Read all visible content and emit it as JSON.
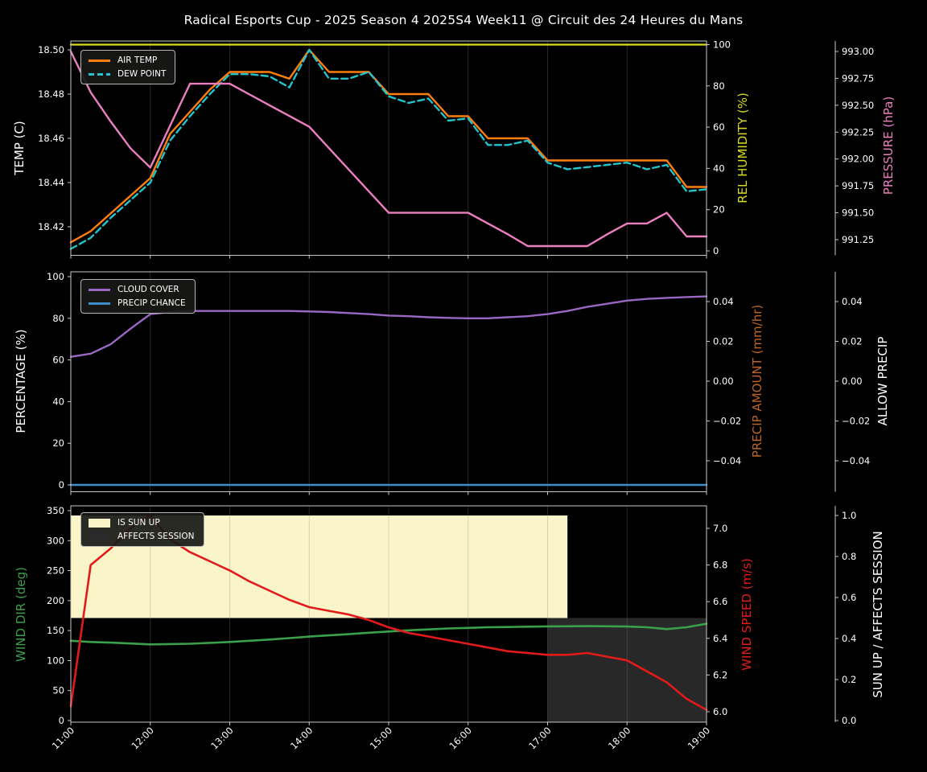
{
  "title": "Radical Esports Cup - 2025 Season 4 2025S4 Week11 @ Circuit des 24 Heures du Mans",
  "style": {
    "background": "#000000",
    "text_color": "#ffffff",
    "grid_color": "#808080",
    "spine_color": "#c8c8c8"
  },
  "x_axis": {
    "tick_labels": [
      "11:00",
      "12:00",
      "13:00",
      "14:00",
      "15:00",
      "16:00",
      "17:00",
      "18:00",
      "19:00"
    ]
  },
  "chart_data": [
    {
      "type": "line",
      "x": [
        "11:00",
        "11:15",
        "11:30",
        "11:45",
        "12:00",
        "12:15",
        "12:30",
        "12:45",
        "13:00",
        "13:15",
        "13:30",
        "13:45",
        "14:00",
        "14:15",
        "14:30",
        "14:45",
        "15:00",
        "15:15",
        "15:30",
        "15:45",
        "16:00",
        "16:15",
        "16:30",
        "16:45",
        "17:00",
        "17:15",
        "17:30",
        "17:45",
        "18:00",
        "18:15",
        "18:30",
        "18:45",
        "19:00"
      ],
      "axes": {
        "left": {
          "label": "TEMP (C)",
          "color": "#ffffff",
          "ticks": [
            "18.42",
            "18.44",
            "18.46",
            "18.48",
            "18.50"
          ]
        },
        "right1": {
          "label": "REL HUMIDITY (%)",
          "color": "#d9dc1f",
          "ticks": [
            "0",
            "20",
            "40",
            "60",
            "80",
            "100"
          ]
        },
        "right2": {
          "label": "PRESSURE (hPa)",
          "color": "#ec7fc1",
          "ticks": [
            "991.25",
            "991.50",
            "991.75",
            "992.00",
            "992.25",
            "992.50",
            "992.75",
            "993.00"
          ]
        }
      },
      "series": [
        {
          "name": "AIR TEMP",
          "axis": "temp",
          "color": "#ff7f0e",
          "width": 2.4,
          "values": [
            18.413,
            18.418,
            18.426,
            18.434,
            18.442,
            18.462,
            18.472,
            18.482,
            18.49,
            18.49,
            18.49,
            18.487,
            18.5,
            18.49,
            18.49,
            18.49,
            18.48,
            18.48,
            18.48,
            18.47,
            18.47,
            18.46,
            18.46,
            18.46,
            18.45,
            18.45,
            18.45,
            18.45,
            18.45,
            18.45,
            18.45,
            18.438,
            18.438
          ]
        },
        {
          "name": "DEW POINT",
          "axis": "temp",
          "color": "#24c4cc",
          "width": 2.4,
          "dash": "8 4.5",
          "values": [
            18.41,
            18.415,
            18.424,
            18.432,
            18.44,
            18.459,
            18.47,
            18.48,
            18.489,
            18.489,
            18.488,
            18.483,
            18.5,
            18.487,
            18.487,
            18.49,
            18.479,
            18.476,
            18.478,
            18.468,
            18.469,
            18.457,
            18.457,
            18.459,
            18.449,
            18.446,
            18.447,
            18.448,
            18.449,
            18.446,
            18.448,
            18.436,
            18.437
          ]
        },
        {
          "name": "REL HUMIDITY",
          "axis": "hum",
          "color": "#d9dc1f",
          "width": 2.2,
          "values": [
            100,
            100,
            100,
            100,
            100,
            100,
            100,
            100,
            100,
            100,
            100,
            100,
            100,
            100,
            100,
            100,
            100,
            100,
            100,
            100,
            100,
            100,
            100,
            100,
            100,
            100,
            100,
            100,
            100,
            100,
            100,
            100,
            100
          ]
        },
        {
          "name": "PRESSURE",
          "axis": "press",
          "color": "#ec7fc1",
          "width": 2.4,
          "values": [
            993.0,
            992.62,
            992.35,
            992.1,
            991.92,
            992.31,
            992.7,
            992.7,
            992.7,
            992.6,
            992.5,
            992.4,
            992.3,
            992.1,
            991.9,
            991.7,
            991.5,
            991.5,
            991.5,
            991.5,
            991.5,
            991.4,
            991.3,
            991.19,
            991.19,
            991.19,
            991.19,
            991.3,
            991.4,
            991.4,
            991.5,
            991.28,
            991.28
          ]
        }
      ],
      "legend": [
        {
          "label": "AIR TEMP",
          "swatch": "line",
          "color": "#ff7f0e"
        },
        {
          "label": "DEW POINT",
          "swatch": "dashed-line",
          "color": "#24c4cc"
        }
      ]
    },
    {
      "type": "line",
      "x": [
        "11:00",
        "11:15",
        "11:30",
        "11:45",
        "12:00",
        "12:15",
        "12:30",
        "12:45",
        "13:00",
        "13:15",
        "13:30",
        "13:45",
        "14:00",
        "14:15",
        "14:30",
        "14:45",
        "15:00",
        "15:15",
        "15:30",
        "15:45",
        "16:00",
        "16:15",
        "16:30",
        "16:45",
        "17:00",
        "17:15",
        "17:30",
        "17:45",
        "18:00",
        "18:15",
        "18:30",
        "18:45",
        "19:00"
      ],
      "axes": {
        "left": {
          "label": "PERCENTAGE (%)",
          "color": "#ffffff",
          "ticks": [
            "0",
            "20",
            "40",
            "60",
            "80",
            "100"
          ]
        },
        "right1": {
          "label": "PRECIP AMOUNT (mm/hr)",
          "color": "#bd6527",
          "ticks": [
            "−0.04",
            "−0.02",
            "0.00",
            "0.02",
            "0.04"
          ]
        },
        "right2": {
          "label": "ALLOW PRECIP",
          "color": "#ffffff",
          "ticks": [
            "−0.04",
            "−0.02",
            "0.00",
            "0.02",
            "0.04"
          ]
        }
      },
      "series": [
        {
          "name": "CLOUD COVER",
          "axis": "pct",
          "color": "#9a68c4",
          "width": 2.4,
          "values": [
            61.5,
            63,
            67.5,
            75,
            82,
            83,
            83.5,
            83.5,
            83.5,
            83.5,
            83.5,
            83.5,
            83.3,
            83,
            82.5,
            82,
            81.3,
            81,
            80.5,
            80.2,
            80,
            80,
            80.5,
            81,
            82,
            83.5,
            85.5,
            87,
            88.5,
            89.3,
            89.8,
            90.2,
            90.5
          ]
        },
        {
          "name": "PRECIP CHANCE",
          "axis": "pct",
          "color": "#3f8ec9",
          "width": 2.4,
          "values": [
            0,
            0,
            0,
            0,
            0,
            0,
            0,
            0,
            0,
            0,
            0,
            0,
            0,
            0,
            0,
            0,
            0,
            0,
            0,
            0,
            0,
            0,
            0,
            0,
            0,
            0,
            0,
            0,
            0,
            0,
            0,
            0,
            0
          ]
        }
      ],
      "legend": [
        {
          "label": "CLOUD COVER",
          "swatch": "line",
          "color": "#9a68c4"
        },
        {
          "label": "PRECIP CHANCE",
          "swatch": "line",
          "color": "#3f8ec9"
        }
      ]
    },
    {
      "type": "line",
      "x": [
        "11:00",
        "11:15",
        "11:30",
        "11:45",
        "12:00",
        "12:15",
        "12:30",
        "12:45",
        "13:00",
        "13:15",
        "13:30",
        "13:45",
        "14:00",
        "14:15",
        "14:30",
        "14:45",
        "15:00",
        "15:15",
        "15:30",
        "15:45",
        "16:00",
        "16:15",
        "16:30",
        "16:45",
        "17:00",
        "17:15",
        "17:30",
        "17:45",
        "18:00",
        "18:15",
        "18:30",
        "18:45",
        "19:00"
      ],
      "axes": {
        "left": {
          "label": "WIND DIR (deg)",
          "color": "#3ba04a",
          "ticks": [
            "0",
            "50",
            "100",
            "150",
            "200",
            "250",
            "300",
            "350"
          ]
        },
        "right1": {
          "label": "WIND SPEED (m/s)",
          "color": "#e31a1a",
          "ticks": [
            "6.0",
            "6.2",
            "6.4",
            "6.6",
            "6.8",
            "7.0"
          ]
        },
        "right2": {
          "label": "SUN UP / AFFECTS SESSION",
          "color": "#ffffff",
          "ticks": [
            "0.0",
            "0.2",
            "0.4",
            "0.6",
            "0.8",
            "1.0"
          ]
        }
      },
      "bands": [
        {
          "name": "IS SUN UP",
          "color": "#f9f5c9",
          "x_from": "11:00",
          "x_to": "17:15",
          "value_from": 0.5,
          "value_to": 1.0
        },
        {
          "name": "AFFECTS SESSION",
          "color": "#282828",
          "x_from": "17:00",
          "x_to": "19:00",
          "value_from": 0.0,
          "value_to": 0.5,
          "to_bottom": true
        }
      ],
      "series": [
        {
          "name": "WIND DIR",
          "axis": "deg",
          "color": "#3ba04a",
          "width": 2.6,
          "values": [
            133,
            131,
            130,
            128.5,
            127,
            127.5,
            128,
            129.5,
            131,
            133,
            135,
            137.5,
            140,
            142,
            144,
            146.5,
            148.5,
            150.5,
            152,
            153.5,
            154.5,
            155.5,
            156,
            156.5,
            157,
            157.2,
            157.4,
            157.2,
            156.8,
            155.5,
            152.5,
            155.5,
            161.5
          ]
        },
        {
          "name": "WIND SPEED",
          "axis": "speed",
          "color": "#e31a1a",
          "width": 2.6,
          "values": [
            6.03,
            6.8,
            6.89,
            7.0,
            7.07,
            6.94,
            6.87,
            6.82,
            6.77,
            6.71,
            6.66,
            6.61,
            6.57,
            6.55,
            6.53,
            6.5,
            6.46,
            6.43,
            6.41,
            6.39,
            6.37,
            6.35,
            6.33,
            6.32,
            6.31,
            6.31,
            6.32,
            6.3,
            6.28,
            6.22,
            6.16,
            6.07,
            6.01
          ]
        }
      ],
      "legend": [
        {
          "label": "IS SUN UP",
          "swatch": "patch",
          "color": "#f9f5c9"
        },
        {
          "label": "AFFECTS SESSION",
          "swatch": "patch",
          "color": "#2a2a2a"
        }
      ]
    }
  ]
}
